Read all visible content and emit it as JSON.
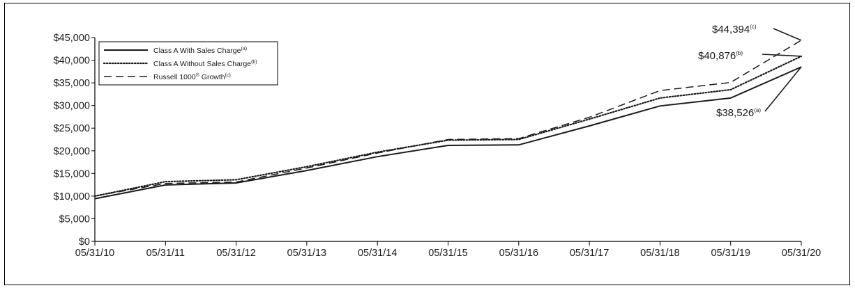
{
  "chart_data": {
    "type": "line",
    "categories": [
      "05/31/10",
      "05/31/11",
      "05/31/12",
      "05/31/13",
      "05/31/14",
      "05/31/15",
      "05/31/16",
      "05/31/17",
      "05/31/18",
      "05/31/19",
      "05/31/20"
    ],
    "y_ticks": [
      "$0",
      "$5,000",
      "$10,000",
      "$15,000",
      "$20,000",
      "$25,000",
      "$30,000",
      "$35,000",
      "$40,000",
      "$45,000"
    ],
    "ylim": [
      0,
      45000
    ],
    "legend_position": "top-left",
    "grid": false,
    "series": [
      {
        "name": "Class A With Sales Charge",
        "name_sup": "(a)",
        "line_style": "solid",
        "values": [
          9424,
          12450,
          12900,
          15650,
          18700,
          21200,
          21300,
          25500,
          29900,
          31650,
          38526
        ],
        "end_label": "$38,526",
        "end_label_sup": "(a)"
      },
      {
        "name": "Class A Without Sales Charge",
        "name_sup": "(b)",
        "line_style": "dotted",
        "values": [
          10000,
          13200,
          13600,
          16500,
          19700,
          22350,
          22500,
          27000,
          31650,
          33500,
          40876
        ],
        "end_label": "$40,876",
        "end_label_sup": "(b)"
      },
      {
        "name": "Russell 1000",
        "name_reg": "®",
        "name_suffix": " Growth",
        "name_sup": "(c)",
        "line_style": "dashed",
        "values": [
          10000,
          12800,
          13100,
          16200,
          19500,
          22500,
          22700,
          27400,
          33300,
          35100,
          44394
        ],
        "end_label": "$44,394",
        "end_label_sup": "(c)"
      }
    ]
  }
}
